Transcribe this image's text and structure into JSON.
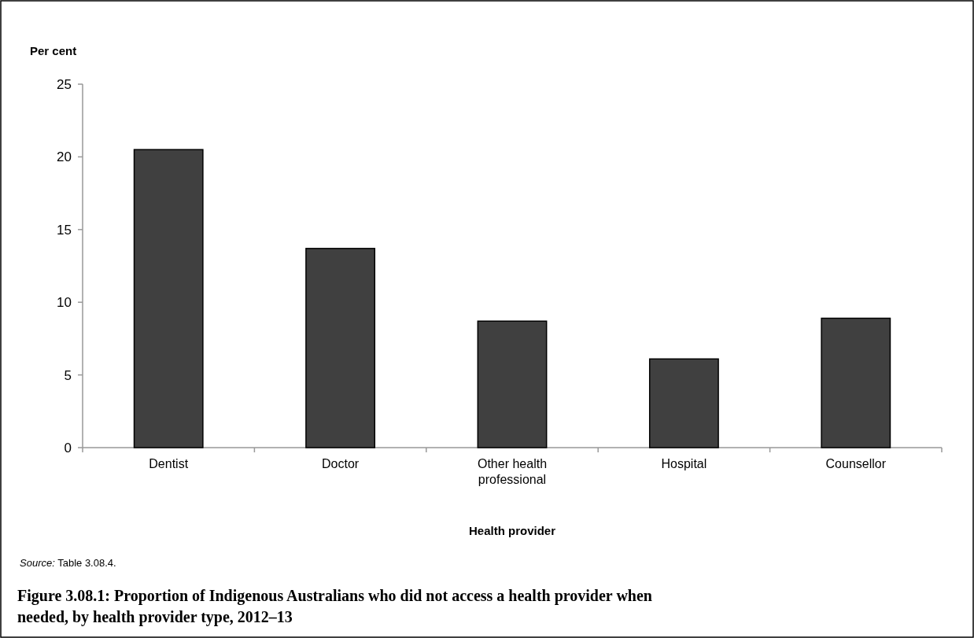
{
  "chart_data": {
    "type": "bar",
    "title": "Figure 3.08.1: Proportion of Indigenous Australians who did not access a health provider when needed, by health provider type, 2012–13",
    "xlabel": "Health provider",
    "ylabel": "Per cent",
    "categories": [
      "Dentist",
      "Doctor",
      "Other health professional",
      "Hospital",
      "Counsellor"
    ],
    "values": [
      20.5,
      13.7,
      8.7,
      6.1,
      8.9
    ],
    "color": "#404040",
    "ylim": [
      0,
      25
    ],
    "yticks": [
      0,
      5,
      10,
      15,
      20,
      25
    ],
    "grid": false,
    "annotations": [
      "Source: Table 3.08.4."
    ]
  }
}
